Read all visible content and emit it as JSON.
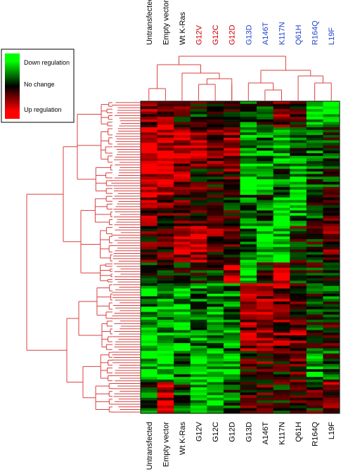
{
  "chart_data": {
    "type": "heatmap",
    "title": "",
    "xlabel": "",
    "ylabel": "",
    "columns": [
      "Untransfected",
      "Empty vector",
      "Wt K-Ras",
      "G12V",
      "G12C",
      "G12D",
      "G13D",
      "A146T",
      "K117N",
      "Q61H",
      "R164Q",
      "L19F"
    ],
    "column_label_colors": [
      "#000000",
      "#000000",
      "#000000",
      "#cc0000",
      "#cc0000",
      "#cc0000",
      "#2244cc",
      "#2244cc",
      "#2244cc",
      "#2244cc",
      "#2244cc",
      "#2244cc"
    ],
    "bottom_labels": [
      "Untransfected",
      "Empty vector",
      "Wt K-Ras",
      "G12V",
      "G12C",
      "G12D",
      "G13D",
      "A146T",
      "K117N",
      "Q61H",
      "R164Q",
      "L19F"
    ],
    "color_scale": {
      "low": "#00ff00",
      "mid": "#000000",
      "high": "#ff0000"
    },
    "dendrogram_color": "#d94040",
    "row_count": 120,
    "block_profiles": [
      {
        "rows": 10,
        "values": [
          0.4,
          0.6,
          0.2,
          0.0,
          0.1,
          0.0,
          -0.3,
          -0.2,
          0.5,
          0.0,
          -0.9,
          -0.9
        ]
      },
      {
        "rows": 14,
        "values": [
          0.9,
          0.9,
          0.7,
          0.6,
          0.5,
          0.5,
          -0.6,
          -0.5,
          -0.7,
          -0.4,
          -0.3,
          -0.2
        ]
      },
      {
        "rows": 12,
        "values": [
          0.8,
          0.9,
          0.6,
          0.2,
          0.2,
          0.3,
          -0.9,
          -0.7,
          -0.4,
          -0.8,
          -0.2,
          -0.1
        ]
      },
      {
        "rows": 12,
        "values": [
          0.5,
          0.3,
          0.2,
          0.0,
          0.1,
          0.1,
          -0.4,
          -0.3,
          -0.8,
          -0.5,
          -0.2,
          0.2
        ]
      },
      {
        "rows": 14,
        "values": [
          0.2,
          0.3,
          0.6,
          0.8,
          0.3,
          0.1,
          -0.5,
          -0.8,
          -0.9,
          0.0,
          0.0,
          0.3
        ]
      },
      {
        "rows": 8,
        "values": [
          0.0,
          -0.1,
          0.1,
          0.1,
          0.0,
          0.7,
          -0.9,
          0.1,
          0.9,
          0.0,
          0.0,
          0.1
        ]
      },
      {
        "rows": 14,
        "values": [
          -0.6,
          -0.7,
          -0.7,
          -0.4,
          -0.5,
          -0.4,
          0.5,
          0.6,
          0.5,
          0.3,
          -0.2,
          -0.3
        ]
      },
      {
        "rows": 12,
        "values": [
          -0.8,
          -0.7,
          -0.6,
          -0.5,
          -0.6,
          -0.5,
          0.6,
          0.5,
          0.4,
          0.5,
          -0.1,
          0.2
        ]
      },
      {
        "rows": 12,
        "values": [
          -0.7,
          -0.8,
          -0.4,
          -0.9,
          -0.8,
          -0.6,
          0.2,
          0.3,
          0.1,
          0.2,
          -0.5,
          -0.2
        ]
      },
      {
        "rows": 12,
        "values": [
          -0.3,
          0.8,
          -0.2,
          -0.6,
          -0.9,
          -0.3,
          0.1,
          0.2,
          0.0,
          0.3,
          0.1,
          0.4
        ]
      }
    ]
  },
  "legend": {
    "items": [
      {
        "label": "Down regulation",
        "color": "#00ff00"
      },
      {
        "label": "No change",
        "color": "#000000"
      },
      {
        "label": "Up regulation",
        "color": "#ff0000"
      }
    ]
  }
}
